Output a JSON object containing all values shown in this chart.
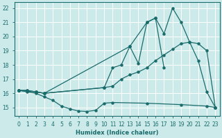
{
  "xlabel": "Humidex (Indice chaleur)",
  "bg_color": "#cceaea",
  "grid_color": "#ffffff",
  "line_color": "#1a6b6b",
  "xlim": [
    -0.5,
    23.5
  ],
  "ylim": [
    14.4,
    22.4
  ],
  "xticks": [
    0,
    1,
    2,
    3,
    4,
    5,
    6,
    7,
    8,
    9,
    10,
    11,
    12,
    13,
    14,
    15,
    16,
    17,
    18,
    19,
    20,
    21,
    22,
    23
  ],
  "yticks": [
    15,
    16,
    17,
    18,
    19,
    20,
    21,
    22
  ],
  "lineA_x": [
    0,
    1,
    2,
    3,
    13,
    15,
    16,
    17,
    18,
    19,
    20,
    21,
    22,
    23
  ],
  "lineA_y": [
    16.2,
    16.2,
    16.1,
    16.0,
    19.3,
    21.0,
    21.3,
    20.2,
    22.0,
    21.0,
    19.6,
    18.3,
    16.1,
    15.0
  ],
  "lineB_x": [
    0,
    1,
    2,
    3,
    10,
    11,
    12,
    13,
    14,
    15,
    16,
    17,
    18,
    19,
    20,
    21,
    22,
    23
  ],
  "lineB_y": [
    16.2,
    16.2,
    16.1,
    16.0,
    16.4,
    16.5,
    17.0,
    17.3,
    17.5,
    17.8,
    18.3,
    18.7,
    19.1,
    19.5,
    19.6,
    19.5,
    19.0,
    15.0
  ],
  "lineC_x": [
    0,
    2,
    3,
    10,
    11,
    12,
    13,
    14,
    15,
    16,
    17
  ],
  "lineC_y": [
    16.2,
    16.1,
    16.0,
    16.4,
    17.8,
    18.0,
    19.3,
    18.1,
    21.0,
    21.3,
    17.8
  ],
  "lineD_x": [
    0,
    1,
    2,
    3,
    4,
    5,
    6,
    7,
    8,
    9,
    10,
    11,
    15,
    19,
    22,
    23
  ],
  "lineD_y": [
    16.2,
    16.1,
    16.0,
    15.75,
    15.5,
    15.1,
    14.9,
    14.75,
    14.72,
    14.8,
    15.3,
    15.35,
    15.3,
    15.2,
    15.1,
    15.0
  ]
}
